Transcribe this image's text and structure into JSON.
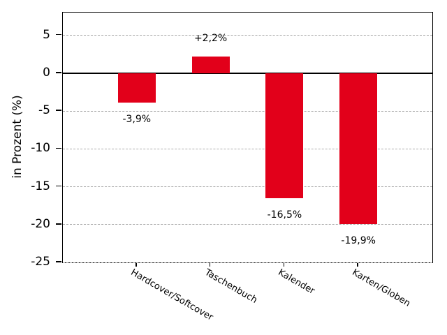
{
  "chart_data": {
    "type": "bar",
    "title": "",
    "xlabel": "",
    "ylabel": "in Prozent (%)",
    "categories": [
      "Hardcover/Softcover",
      "Taschenbuch",
      "Kalender",
      "Karten/Globen"
    ],
    "values": [
      -3.9,
      2.2,
      -16.5,
      -19.9
    ],
    "value_labels": [
      "-3,9%",
      "+2,2%",
      "-16,5%",
      "-19,9%"
    ],
    "ylim": [
      -25,
      8
    ],
    "yticks": [
      5,
      0,
      -5,
      -10,
      -15,
      -20,
      -25
    ],
    "grid": "horizontal dashed gridlines at yticks, solid black zero line",
    "legend_position": "none",
    "bar_color": "#e2001a",
    "gridline_color": "#aaaaaa",
    "axis_color": "#000000",
    "background_color": "#ffffff"
  }
}
